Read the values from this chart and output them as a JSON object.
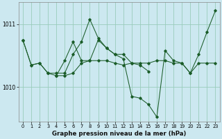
{
  "title": "Graphe pression niveau de la mer (hPa)",
  "bg_color": "#cce8f0",
  "grid_color": "#99ccbb",
  "line_color": "#1a5c28",
  "xlim": [
    -0.5,
    23.5
  ],
  "ylim": [
    1009.45,
    1011.35
  ],
  "yticks": [
    1010,
    1011
  ],
  "xticks": [
    0,
    1,
    2,
    3,
    4,
    5,
    6,
    7,
    8,
    9,
    10,
    11,
    12,
    13,
    14,
    15,
    16,
    17,
    18,
    19,
    20,
    21,
    22,
    23
  ],
  "series": [
    [
      1010.75,
      1010.35,
      1010.38,
      1010.22,
      1010.18,
      1010.18,
      1010.22,
      1010.38,
      1010.42,
      1010.42,
      1010.42,
      1010.38,
      1010.35,
      1010.38,
      1010.38,
      1010.38,
      1010.42,
      1010.42,
      1010.38,
      1010.38,
      1010.22,
      1010.38,
      1010.38,
      1010.38
    ],
    [
      1010.75,
      1010.35,
      1010.38,
      1010.22,
      1010.22,
      1010.22,
      1010.52,
      1010.72,
      1011.08,
      1010.78,
      1010.62,
      1010.52,
      1010.52,
      1010.38,
      1010.35,
      1010.25,
      null,
      null,
      null,
      null,
      null,
      null,
      null,
      null
    ],
    [
      null,
      null,
      null,
      null,
      1010.18,
      1010.42,
      1010.72,
      1010.42,
      1010.42,
      1010.75,
      1010.62,
      1010.52,
      1010.45,
      1009.85,
      1009.82,
      1009.72,
      1009.52,
      1010.58,
      1010.42,
      1010.38,
      1010.22,
      1010.52,
      1010.88,
      1011.22
    ]
  ]
}
